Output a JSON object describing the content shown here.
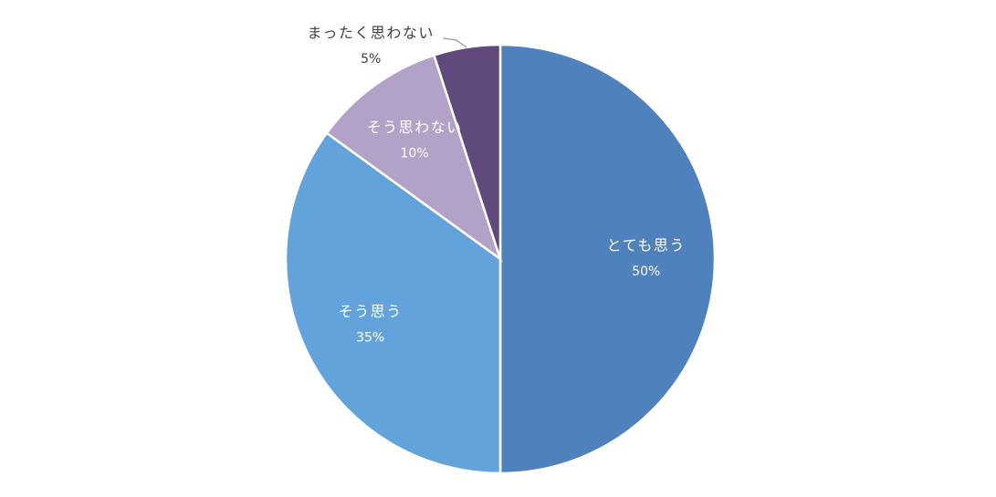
{
  "chart_data": {
    "type": "pie",
    "categories": [
      "とても思う",
      "そう思う",
      "そう思わない",
      "まったく思わない"
    ],
    "values": [
      50,
      35,
      10,
      5
    ],
    "value_labels": [
      "50%",
      "35%",
      "10%",
      "5%"
    ],
    "colors": [
      "#4f81bd",
      "#63a3db",
      "#b3a2c7",
      "#604a7b"
    ]
  }
}
